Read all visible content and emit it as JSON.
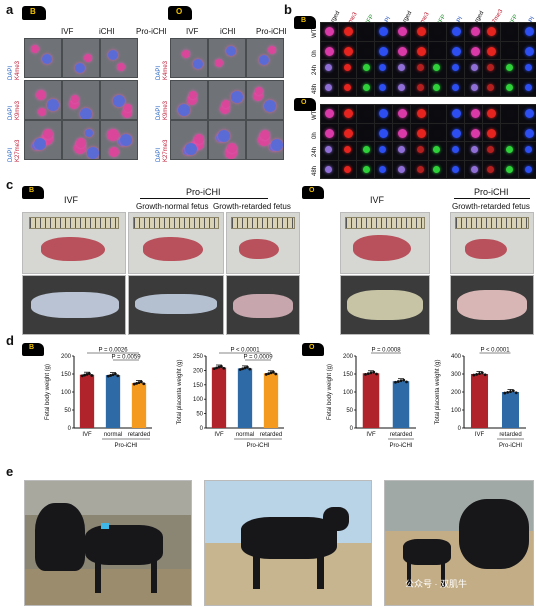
{
  "panels": {
    "a": "a",
    "b": "b",
    "c": "c",
    "d": "d",
    "e": "e"
  },
  "badges": {
    "bovine": "B",
    "ovine": "O"
  },
  "panel_a": {
    "cols": [
      "IVF",
      "iCHI",
      "Pro-iCHI"
    ],
    "rows_left": [
      {
        "dapi": "DAPI",
        "mark": "K4me3"
      },
      {
        "dapi": "DAPI",
        "mark": "K9me3"
      },
      {
        "dapi": "DAPI",
        "mark": "K27me3"
      }
    ],
    "rows_right": [
      {
        "dapi": "DAPI",
        "mark": "K4me3"
      },
      {
        "dapi": "DAPI",
        "mark": "K9me3"
      },
      {
        "dapi": "DAPI",
        "mark": "K27me3"
      }
    ]
  },
  "panel_b": {
    "col_groups": [
      [
        "Merged",
        "K4me3",
        "EGFP",
        "DAPI"
      ],
      [
        "Merged",
        "K9me3",
        "EGFP",
        "DAPI"
      ],
      [
        "Merged",
        "K27me3",
        "EGFP",
        "DAPI"
      ]
    ],
    "rows": [
      "WT",
      "0h",
      "24h",
      "48h"
    ]
  },
  "panel_c": {
    "left_ivf": "IVF",
    "left_pro": "Pro-iCHI",
    "left_normal": "Growth-normal fetus",
    "left_retarded": "Growth-retarded fetus",
    "right_ivf": "IVF",
    "right_pro": "Pro-iCHI",
    "right_retarded": "Growth-retarded fetus"
  },
  "panel_e": {
    "watermark": "公众号 · 双肌牛"
  },
  "colors": {
    "ivf": "#b0232a",
    "normal": "#2e6aa6",
    "retarded": "#f39a1f",
    "ovine_pro": "#2e6aa6"
  },
  "chart_data": [
    {
      "type": "bar",
      "title": "",
      "ylabel": "Fetal body weight (g)",
      "categories": [
        "IVF",
        "normal",
        "retarded"
      ],
      "group_label": "Pro-iCHI",
      "values": [
        148,
        147,
        125
      ],
      "ylim": [
        0,
        200
      ],
      "yticks": [
        0,
        50,
        100,
        150,
        200
      ],
      "pvalues": [
        "P = 0.0026",
        "P = 0.0059"
      ]
    },
    {
      "type": "bar",
      "title": "",
      "ylabel": "Total placenta weight (g)",
      "categories": [
        "IVF",
        "normal",
        "retarded"
      ],
      "group_label": "Pro-iCHI",
      "values": [
        210,
        207,
        190
      ],
      "ylim": [
        0,
        250
      ],
      "yticks": [
        0,
        50,
        100,
        150,
        200,
        250
      ],
      "pvalues": [
        "P < 0.0001",
        "P = 0.0009"
      ]
    },
    {
      "type": "bar",
      "title": "",
      "ylabel": "Fetal body weight (g)",
      "categories": [
        "IVF",
        "retarded"
      ],
      "group_label": "Pro-iCHI",
      "values": [
        152,
        130
      ],
      "ylim": [
        0,
        200
      ],
      "yticks": [
        0,
        50,
        100,
        150,
        200
      ],
      "pvalues": [
        "P = 0.0008"
      ]
    },
    {
      "type": "bar",
      "title": "",
      "ylabel": "Total placenta weight (g)",
      "categories": [
        "IVF",
        "retarded"
      ],
      "group_label": "Pro-iCHI",
      "values": [
        300,
        200
      ],
      "ylim": [
        0,
        400
      ],
      "yticks": [
        0,
        100,
        200,
        300,
        400
      ],
      "pvalues": [
        "P < 0.0001"
      ]
    }
  ]
}
